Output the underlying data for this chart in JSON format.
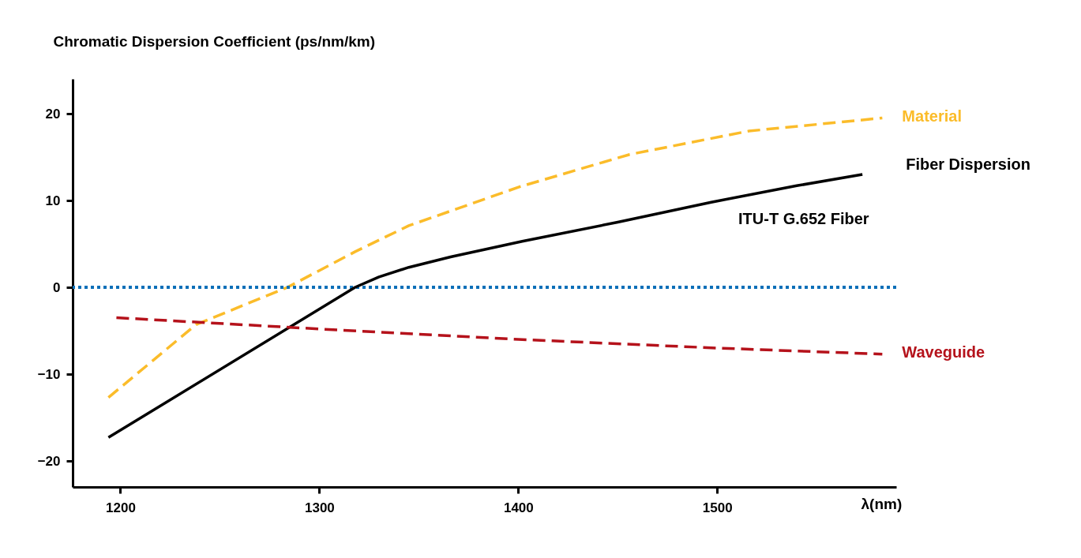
{
  "chart_data": {
    "type": "line",
    "ylabel": "Chromatic Dispersion Coefficient (ps/nm/km)",
    "xlabel": "λ(nm)",
    "xlim": [
      1176,
      1590
    ],
    "ylim": [
      -23,
      24
    ],
    "xticks": [
      1200,
      1300,
      1400,
      1500
    ],
    "yticks": [
      -20,
      -10,
      0,
      10,
      20
    ],
    "grid": false,
    "legend": false,
    "marker": "none",
    "series": [
      {
        "name": "Material",
        "color": "#fbbc2a",
        "line_style": "dashed",
        "x": [
          1194,
          1238,
          1284,
          1318,
          1345,
          1401,
          1456,
          1516,
          1583
        ],
        "values": [
          -12.7,
          -4.3,
          0,
          4.1,
          7.1,
          11.6,
          15.3,
          18,
          19.5
        ]
      },
      {
        "name": "Fiber Dispersion",
        "color": "#000000",
        "line_style": "solid",
        "x": [
          1194,
          1318,
          1330,
          1345,
          1366,
          1402,
          1450,
          1497,
          1540,
          1573
        ],
        "values": [
          -17.3,
          0,
          1.2,
          2.3,
          3.5,
          5.3,
          7.5,
          9.8,
          11.7,
          13
        ]
      },
      {
        "name": "Waveguide",
        "color": "#b5121b",
        "line_style": "dashed",
        "x": [
          1198,
          1300,
          1400,
          1500,
          1583
        ],
        "values": [
          -3.5,
          -4.8,
          -6,
          -7,
          -7.7
        ]
      }
    ],
    "ref_lines": [
      {
        "axis": "y",
        "value": 0,
        "color": "#0b6fb8",
        "line_style": "dotted"
      }
    ],
    "annotations": [
      "ITU-T G.652 Fiber"
    ]
  }
}
